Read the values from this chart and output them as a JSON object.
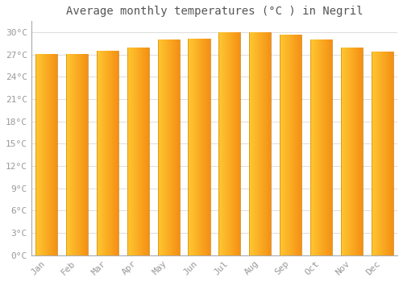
{
  "months": [
    "Jan",
    "Feb",
    "Mar",
    "Apr",
    "May",
    "Jun",
    "Jul",
    "Aug",
    "Sep",
    "Oct",
    "Nov",
    "Dec"
  ],
  "temperatures": [
    27.1,
    27.1,
    27.5,
    28.0,
    29.0,
    29.1,
    30.0,
    30.0,
    29.7,
    29.0,
    28.0,
    27.4
  ],
  "bar_color_left": "#FFD966",
  "bar_color_right": "#F5A623",
  "bar_color_mid": "#FFAA00",
  "bg_color": "#FFFFFF",
  "plot_bg_color": "#FFFFFF",
  "grid_color": "#DDDDDD",
  "title": "Average monthly temperatures (°C ) in Negril",
  "title_fontsize": 10,
  "tick_fontsize": 8,
  "tick_color": "#999999",
  "ylim": [
    0,
    31.5
  ],
  "ytick_max": 30,
  "ytick_step": 3,
  "bar_width": 0.72
}
